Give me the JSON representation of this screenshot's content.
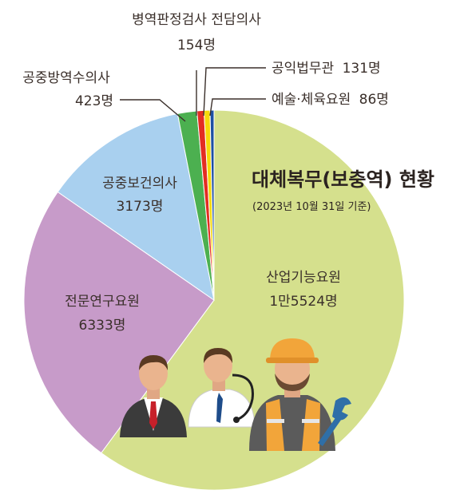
{
  "chart_data": {
    "type": "pie",
    "title": "대체복무(보충역) 현황",
    "subtitle": "(2023년 10월 31일 기준)",
    "slices": [
      {
        "name": "산업기능요원",
        "value": 15524,
        "value_label": "1만5524명",
        "color": "#d5e08d"
      },
      {
        "name": "전문연구요원",
        "value": 6333,
        "value_label": "6333명",
        "color": "#c79bc9"
      },
      {
        "name": "공중보건의사",
        "value": 3173,
        "value_label": "3173명",
        "color": "#a9d0ef"
      },
      {
        "name": "공중방역수의사",
        "value": 423,
        "value_label": "423명",
        "color": "#4cb050"
      },
      {
        "name": "병역판정검사 전담의사",
        "value": 154,
        "value_label": "154명",
        "color": "#e32d22"
      },
      {
        "name": "공익법무관",
        "value": 131,
        "value_label": "131명",
        "color": "#f5d90a"
      },
      {
        "name": "예술·체육요원",
        "value": 86,
        "value_label": "86명",
        "color": "#1d4fa3"
      }
    ]
  }
}
